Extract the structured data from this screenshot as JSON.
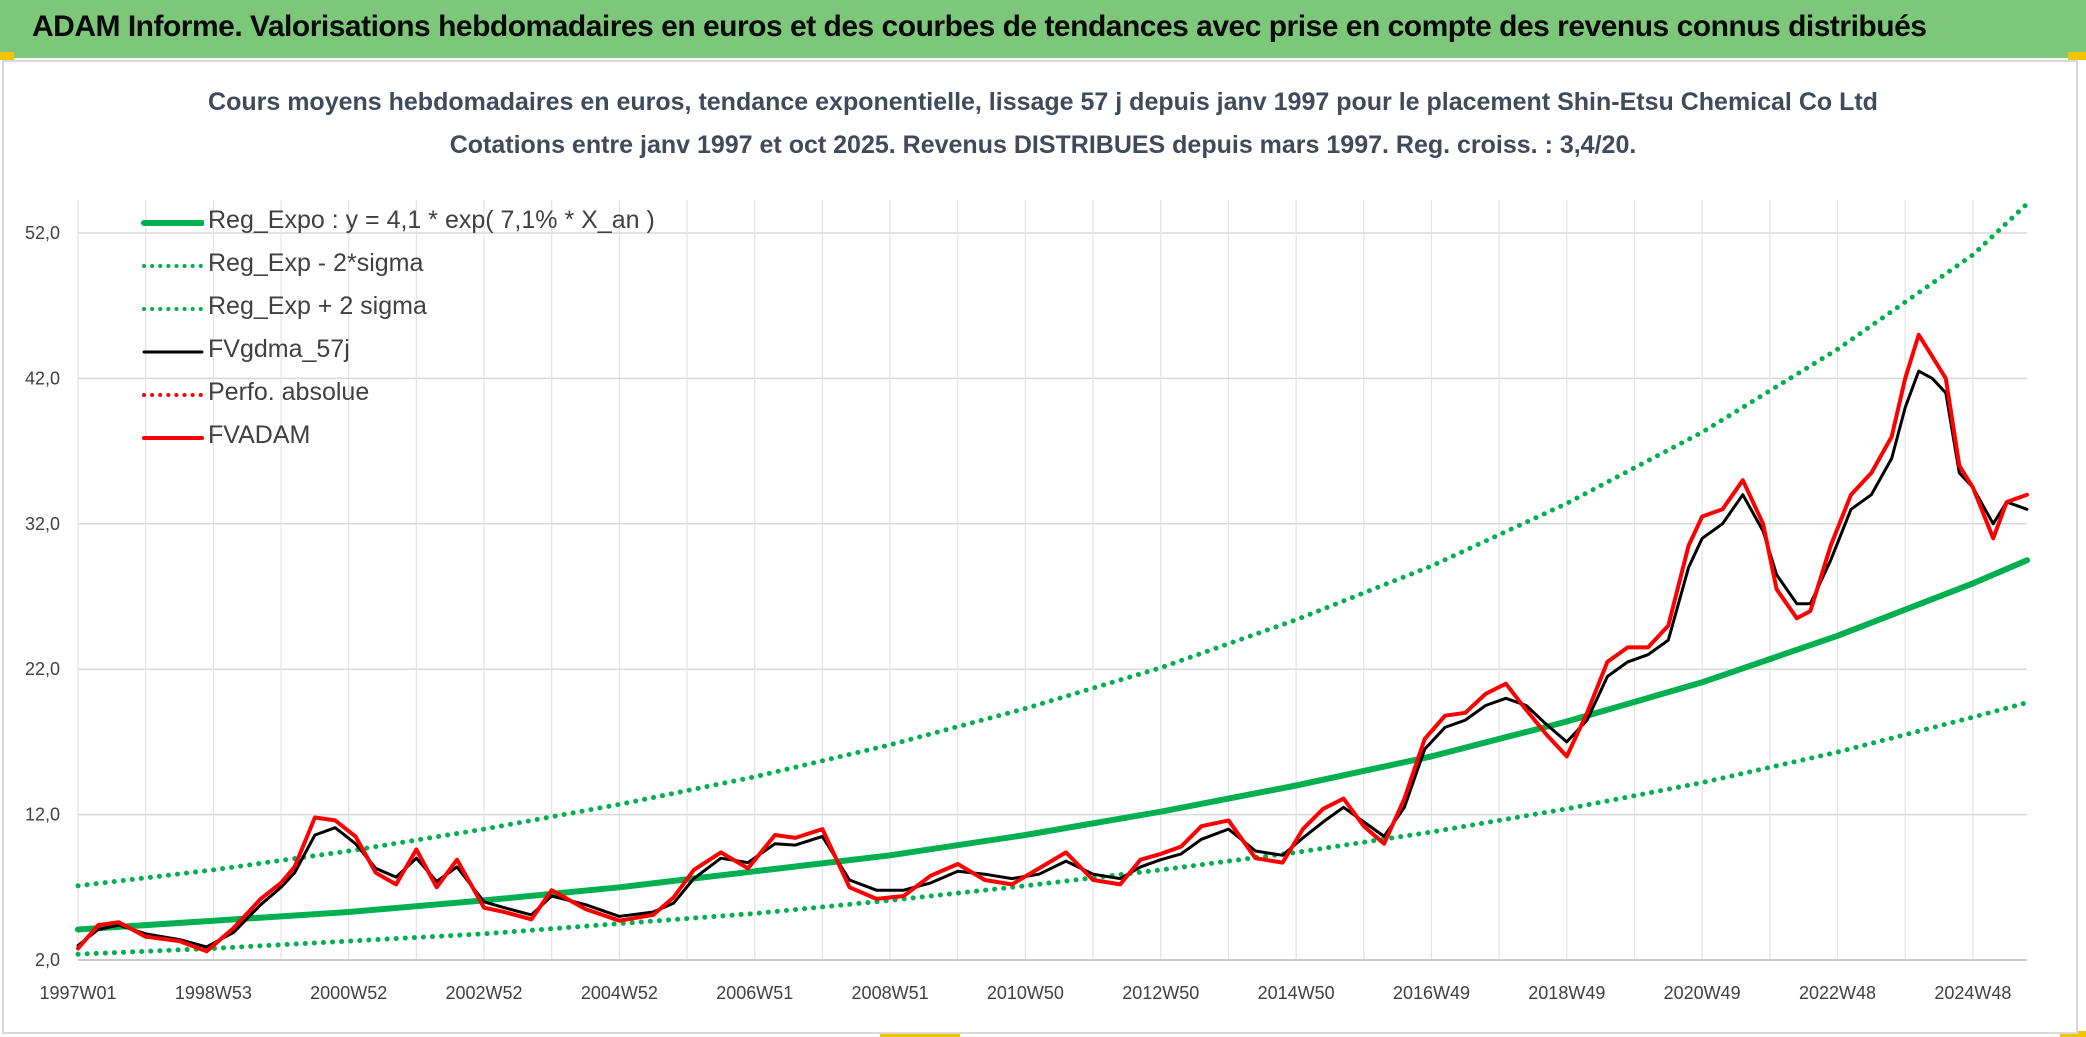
{
  "header": {
    "title": "ADAM Informe. Valorisations hebdomadaires en euros et des courbes de tendances avec prise en compte des revenus connus distribués"
  },
  "chart_data": {
    "type": "line",
    "title": "Cours moyens hebdomadaires en euros, tendance exponentielle, lissage 57 j depuis janv 1997 pour le placement Shin-Etsu Chemical Co Ltd",
    "subtitle": "Cotations entre janv 1997 et oct 2025. Revenus DISTRIBUES depuis mars 1997. Reg. croiss. : 3,4/20.",
    "xlabel": "",
    "ylabel": "",
    "x_range": [
      1997.0,
      2025.8
    ],
    "ylim": [
      2.0,
      56.0
    ],
    "y_ticks": [
      "2,0",
      "12,0",
      "22,0",
      "32,0",
      "42,0",
      "52,0"
    ],
    "y_tick_values": [
      2,
      12,
      22,
      32,
      42,
      52
    ],
    "x_ticks": [
      "1997W01",
      "1998W53",
      "2000W52",
      "2002W52",
      "2004W52",
      "2006W51",
      "2008W51",
      "2010W50",
      "2012W50",
      "2014W50",
      "2016W49",
      "2018W49",
      "2020W49",
      "2022W48",
      "2024W48"
    ],
    "x_tick_values": [
      1997.0,
      1999.0,
      2001.0,
      2003.0,
      2005.0,
      2007.0,
      2009.0,
      2011.0,
      2013.0,
      2015.0,
      2017.0,
      2019.0,
      2021.0,
      2023.0,
      2025.0
    ],
    "grid": true,
    "legend_position": "top-left",
    "series": [
      {
        "name": "Reg_Expo : y = 4,1 * exp( 7,1% *  X_an )",
        "color": "#00b050",
        "style": "solid",
        "width": 6,
        "x": [
          1997.0,
          1999.0,
          2001.0,
          2003.0,
          2005.0,
          2007.0,
          2009.0,
          2011.0,
          2013.0,
          2015.0,
          2017.0,
          2019.0,
          2021.0,
          2023.0,
          2025.0,
          2025.8
        ],
        "values": [
          4.1,
          4.7,
          5.3,
          6.1,
          7.0,
          8.1,
          9.2,
          10.6,
          12.2,
          14.0,
          16.0,
          18.4,
          21.1,
          24.3,
          27.9,
          29.5
        ]
      },
      {
        "name": "Reg_Exp - 2*sigma",
        "color": "#00b050",
        "style": "dotted",
        "width": 4,
        "x": [
          1997.0,
          1999.0,
          2001.0,
          2003.0,
          2005.0,
          2007.0,
          2009.0,
          2011.0,
          2013.0,
          2015.0,
          2017.0,
          2019.0,
          2021.0,
          2023.0,
          2025.0,
          2025.8
        ],
        "values": [
          2.4,
          2.8,
          3.3,
          3.8,
          4.5,
          5.2,
          6.1,
          7.1,
          8.2,
          9.4,
          10.8,
          12.4,
          14.2,
          16.3,
          18.7,
          19.7
        ]
      },
      {
        "name": "Reg_Exp + 2 sigma",
        "color": "#00b050",
        "style": "dotted",
        "width": 4,
        "x": [
          1997.0,
          1999.0,
          2001.0,
          2003.0,
          2005.0,
          2007.0,
          2009.0,
          2011.0,
          2013.0,
          2015.0,
          2017.0,
          2019.0,
          2021.0,
          2023.0,
          2025.0,
          2025.8
        ],
        "values": [
          7.1,
          8.2,
          9.5,
          11.0,
          12.7,
          14.6,
          16.8,
          19.3,
          22.1,
          25.4,
          29.1,
          33.4,
          38.3,
          44.0,
          50.5,
          54.0
        ]
      },
      {
        "name": "FVgdma_57j",
        "color": "#000000",
        "style": "solid",
        "width": 3,
        "x": [
          1997.0,
          1997.3,
          1997.6,
          1998.0,
          1998.5,
          1998.9,
          1999.3,
          1999.7,
          2000.0,
          2000.2,
          2000.5,
          2000.8,
          2001.1,
          2001.4,
          2001.7,
          2002.0,
          2002.3,
          2002.6,
          2003.0,
          2003.3,
          2003.7,
          2004.0,
          2004.5,
          2005.0,
          2005.5,
          2005.8,
          2006.1,
          2006.5,
          2006.9,
          2007.3,
          2007.6,
          2008.0,
          2008.4,
          2008.8,
          2009.2,
          2009.6,
          2010.0,
          2010.4,
          2010.8,
          2011.2,
          2011.6,
          2012.0,
          2012.4,
          2012.7,
          2013.0,
          2013.3,
          2013.6,
          2014.0,
          2014.4,
          2014.8,
          2015.1,
          2015.4,
          2015.7,
          2016.0,
          2016.3,
          2016.6,
          2016.9,
          2017.2,
          2017.5,
          2017.8,
          2018.1,
          2018.4,
          2018.7,
          2019.0,
          2019.3,
          2019.6,
          2019.9,
          2020.2,
          2020.5,
          2020.8,
          2021.0,
          2021.3,
          2021.6,
          2021.9,
          2022.1,
          2022.4,
          2022.6,
          2022.9,
          2023.2,
          2023.5,
          2023.8,
          2024.0,
          2024.2,
          2024.4,
          2024.6,
          2024.8,
          2025.0,
          2025.3,
          2025.5,
          2025.8
        ],
        "values": [
          3.0,
          4.1,
          4.4,
          3.8,
          3.4,
          2.9,
          3.9,
          5.8,
          7.0,
          8.0,
          10.6,
          11.1,
          10.0,
          8.3,
          7.7,
          9.0,
          7.4,
          8.4,
          6.0,
          5.6,
          5.1,
          6.4,
          5.8,
          5.0,
          5.3,
          5.9,
          7.6,
          9.0,
          8.7,
          10.0,
          9.9,
          10.5,
          7.5,
          6.8,
          6.8,
          7.3,
          8.1,
          7.9,
          7.6,
          7.9,
          8.8,
          7.9,
          7.6,
          8.4,
          8.9,
          9.3,
          10.3,
          11.0,
          9.5,
          9.2,
          10.4,
          11.5,
          12.5,
          11.5,
          10.5,
          12.5,
          16.5,
          18.0,
          18.5,
          19.5,
          20.0,
          19.5,
          18.2,
          17.0,
          18.5,
          21.5,
          22.5,
          23.0,
          24.0,
          29.0,
          31.0,
          32.0,
          34.0,
          31.5,
          28.5,
          26.5,
          26.5,
          29.5,
          33.0,
          34.0,
          36.5,
          40.0,
          42.5,
          42.0,
          41.0,
          35.5,
          34.5,
          32.0,
          33.5,
          33.0
        ]
      },
      {
        "name": "Perfo. absolue",
        "color": "#ff0000",
        "style": "dotted",
        "width": 3,
        "x": [],
        "values": []
      },
      {
        "name": "FVADAM",
        "color": "#ff0000",
        "style": "solid",
        "width": 4,
        "x": [
          1997.0,
          1997.3,
          1997.6,
          1998.0,
          1998.5,
          1998.9,
          1999.3,
          1999.7,
          2000.0,
          2000.2,
          2000.5,
          2000.8,
          2001.1,
          2001.4,
          2001.7,
          2002.0,
          2002.3,
          2002.6,
          2003.0,
          2003.3,
          2003.7,
          2004.0,
          2004.5,
          2005.0,
          2005.5,
          2005.8,
          2006.1,
          2006.5,
          2006.9,
          2007.3,
          2007.6,
          2008.0,
          2008.4,
          2008.8,
          2009.2,
          2009.6,
          2010.0,
          2010.4,
          2010.8,
          2011.2,
          2011.6,
          2012.0,
          2012.4,
          2012.7,
          2013.0,
          2013.3,
          2013.6,
          2014.0,
          2014.4,
          2014.8,
          2015.1,
          2015.4,
          2015.7,
          2016.0,
          2016.3,
          2016.6,
          2016.9,
          2017.2,
          2017.5,
          2017.8,
          2018.1,
          2018.4,
          2018.7,
          2019.0,
          2019.3,
          2019.6,
          2019.9,
          2020.2,
          2020.5,
          2020.8,
          2021.0,
          2021.3,
          2021.6,
          2021.9,
          2022.1,
          2022.4,
          2022.6,
          2022.9,
          2023.2,
          2023.5,
          2023.8,
          2024.0,
          2024.2,
          2024.4,
          2024.6,
          2024.8,
          2025.0,
          2025.3,
          2025.5,
          2025.8
        ],
        "values": [
          2.8,
          4.4,
          4.6,
          3.6,
          3.3,
          2.6,
          4.2,
          6.2,
          7.3,
          8.4,
          11.8,
          11.6,
          10.5,
          8.0,
          7.2,
          9.6,
          7.0,
          8.9,
          5.6,
          5.3,
          4.8,
          6.8,
          5.5,
          4.7,
          5.1,
          6.3,
          8.2,
          9.4,
          8.3,
          10.6,
          10.4,
          11.0,
          7.0,
          6.2,
          6.4,
          7.8,
          8.6,
          7.5,
          7.2,
          8.3,
          9.4,
          7.5,
          7.2,
          8.9,
          9.3,
          9.8,
          11.2,
          11.6,
          9.0,
          8.7,
          11.0,
          12.4,
          13.1,
          11.2,
          10.0,
          13.1,
          17.2,
          18.8,
          19.0,
          20.3,
          21.0,
          19.2,
          17.5,
          16.0,
          19.0,
          22.5,
          23.5,
          23.5,
          25.0,
          30.5,
          32.5,
          33.0,
          35.0,
          32.0,
          27.5,
          25.5,
          26.0,
          30.5,
          34.0,
          35.5,
          38.0,
          42.0,
          45.0,
          43.5,
          42.0,
          36.0,
          34.5,
          31.0,
          33.5,
          34.0
        ]
      }
    ]
  }
}
